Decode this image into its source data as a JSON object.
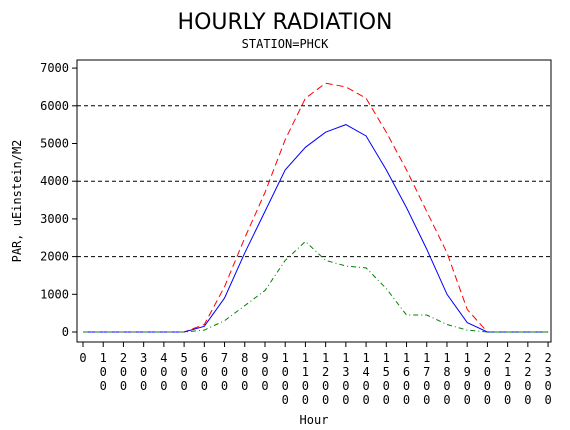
{
  "chart_data": {
    "type": "line",
    "title": "HOURLY RADIATION",
    "subtitle": "STATION=PHCK",
    "xlabel": "Hour",
    "ylabel": "PAR, uEinstein/M2",
    "ylim": [
      0,
      7000
    ],
    "yticks": [
      "0",
      "1000",
      "2000",
      "3000",
      "4000",
      "5000",
      "6000",
      "7000"
    ],
    "xticks": [
      "0",
      "100",
      "200",
      "300",
      "400",
      "500",
      "600",
      "700",
      "800",
      "900",
      "1000",
      "1100",
      "1200",
      "1300",
      "1400",
      "1500",
      "1600",
      "1700",
      "1800",
      "1900",
      "2000",
      "2100",
      "2200",
      "2300"
    ],
    "reference_lines": [
      2000,
      4000,
      6000
    ],
    "grid": false,
    "x": [
      0,
      100,
      200,
      300,
      400,
      500,
      600,
      700,
      800,
      900,
      1000,
      1100,
      1200,
      1300,
      1400,
      1500,
      1600,
      1700,
      1800,
      1900,
      2000,
      2100,
      2200,
      2300
    ],
    "series": [
      {
        "color": "#ff0000",
        "dash": "dashed",
        "values": [
          0,
          0,
          0,
          0,
          0,
          0,
          200,
          1200,
          2500,
          3700,
          5100,
          6200,
          6600,
          6500,
          6200,
          5300,
          4300,
          3200,
          2100,
          600,
          0,
          0,
          0,
          0
        ]
      },
      {
        "color": "#0000ff",
        "dash": "solid",
        "values": [
          0,
          0,
          0,
          0,
          0,
          0,
          150,
          900,
          2100,
          3200,
          4300,
          4900,
          5300,
          5500,
          5200,
          4300,
          3300,
          2200,
          1000,
          250,
          0,
          0,
          0,
          0
        ]
      },
      {
        "color": "#008000",
        "dash": "dashdot",
        "values": [
          0,
          0,
          0,
          0,
          0,
          0,
          50,
          300,
          700,
          1100,
          1900,
          2400,
          1900,
          1750,
          1700,
          1150,
          450,
          450,
          200,
          50,
          0,
          0,
          0,
          0
        ]
      }
    ]
  }
}
